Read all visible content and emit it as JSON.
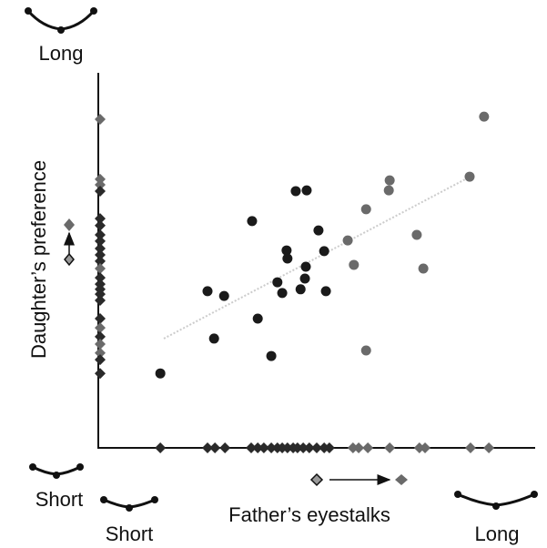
{
  "chart_data": {
    "type": "scatter",
    "y_top_label": "Long",
    "y_label": "Daughter’s preference",
    "y_bottom_label": "Short",
    "x_left_label": "Short",
    "x_label": "Father’s eyestalks",
    "x_right_label": "Long",
    "xlim": [
      0,
      100
    ],
    "ylim": [
      0,
      100
    ],
    "x": [
      14.2,
      25.0,
      28.8,
      26.5,
      35.2,
      36.5,
      39.6,
      41.0,
      42.1,
      43.1,
      43.3,
      45.2,
      47.7,
      46.3,
      47.5,
      47.3,
      50.4,
      51.7,
      52.1,
      57.1,
      58.5,
      61.3,
      61.3,
      66.5,
      66.7,
      72.9,
      74.4,
      85.0,
      88.3
    ],
    "y": [
      20.1,
      42.3,
      41.0,
      29.5,
      61.2,
      34.9,
      24.8,
      44.7,
      41.8,
      53.3,
      51.1,
      69.3,
      69.5,
      42.8,
      48.9,
      45.7,
      58.7,
      53.1,
      42.3,
      56.0,
      49.4,
      26.3,
      64.4,
      69.5,
      72.2,
      57.5,
      48.4,
      73.2,
      89.4
    ],
    "colors": [
      "#1a1a1a",
      "#1a1a1a",
      "#1a1a1a",
      "#1a1a1a",
      "#1a1a1a",
      "#1a1a1a",
      "#1a1a1a",
      "#1a1a1a",
      "#1a1a1a",
      "#1a1a1a",
      "#1a1a1a",
      "#1a1a1a",
      "#1a1a1a",
      "#1a1a1a",
      "#1a1a1a",
      "#1a1a1a",
      "#1a1a1a",
      "#1a1a1a",
      "#1a1a1a",
      "#6a6a6a",
      "#6a6a6a",
      "#6a6a6a",
      "#6a6a6a",
      "#6a6a6a",
      "#6a6a6a",
      "#6a6a6a",
      "#6a6a6a",
      "#6a6a6a",
      "#6a6a6a"
    ],
    "rug_x": [
      14.2,
      25.0,
      26.7,
      29.0,
      35.0,
      36.5,
      37.9,
      39.6,
      41.0,
      42.1,
      43.3,
      44.6,
      45.6,
      46.9,
      48.3,
      50.0,
      51.7,
      52.9,
      58.3,
      59.6,
      61.7,
      66.7,
      73.5,
      74.8,
      85.2,
      89.4
    ],
    "rug_x_colors": [
      "#2a2a2a",
      "#2a2a2a",
      "#2a2a2a",
      "#2a2a2a",
      "#2a2a2a",
      "#2a2a2a",
      "#2a2a2a",
      "#2a2a2a",
      "#2a2a2a",
      "#2a2a2a",
      "#2a2a2a",
      "#2a2a2a",
      "#2a2a2a",
      "#2a2a2a",
      "#2a2a2a",
      "#2a2a2a",
      "#2a2a2a",
      "#2a2a2a",
      "#6a6a6a",
      "#6a6a6a",
      "#6a6a6a",
      "#6a6a6a",
      "#6a6a6a",
      "#6a6a6a",
      "#6a6a6a",
      "#6a6a6a"
    ],
    "rug_y": [
      88.7,
      72.5,
      71.0,
      69.3,
      61.9,
      60.0,
      57.5,
      55.8,
      53.8,
      52.1,
      50.4,
      48.4,
      45.9,
      44.2,
      42.8,
      41.5,
      39.8,
      34.9,
      32.4,
      30.0,
      28.0,
      25.6,
      23.8,
      20.1
    ],
    "rug_y_colors": [
      "#6a6a6a",
      "#6a6a6a",
      "#6a6a6a",
      "#2a2a2a",
      "#2a2a2a",
      "#2a2a2a",
      "#2a2a2a",
      "#2a2a2a",
      "#2a2a2a",
      "#2a2a2a",
      "#2a2a2a",
      "#6a6a6a",
      "#2a2a2a",
      "#2a2a2a",
      "#2a2a2a",
      "#2a2a2a",
      "#2a2a2a",
      "#2a2a2a",
      "#6a6a6a",
      "#2a2a2a",
      "#6a6a6a",
      "#6a6a6a",
      "#2a2a2a",
      "#2a2a2a"
    ],
    "trend": {
      "x": [
        15.0,
        84.8
      ],
      "y": [
        29.5,
        73.0
      ],
      "color": "#cccccc"
    }
  }
}
